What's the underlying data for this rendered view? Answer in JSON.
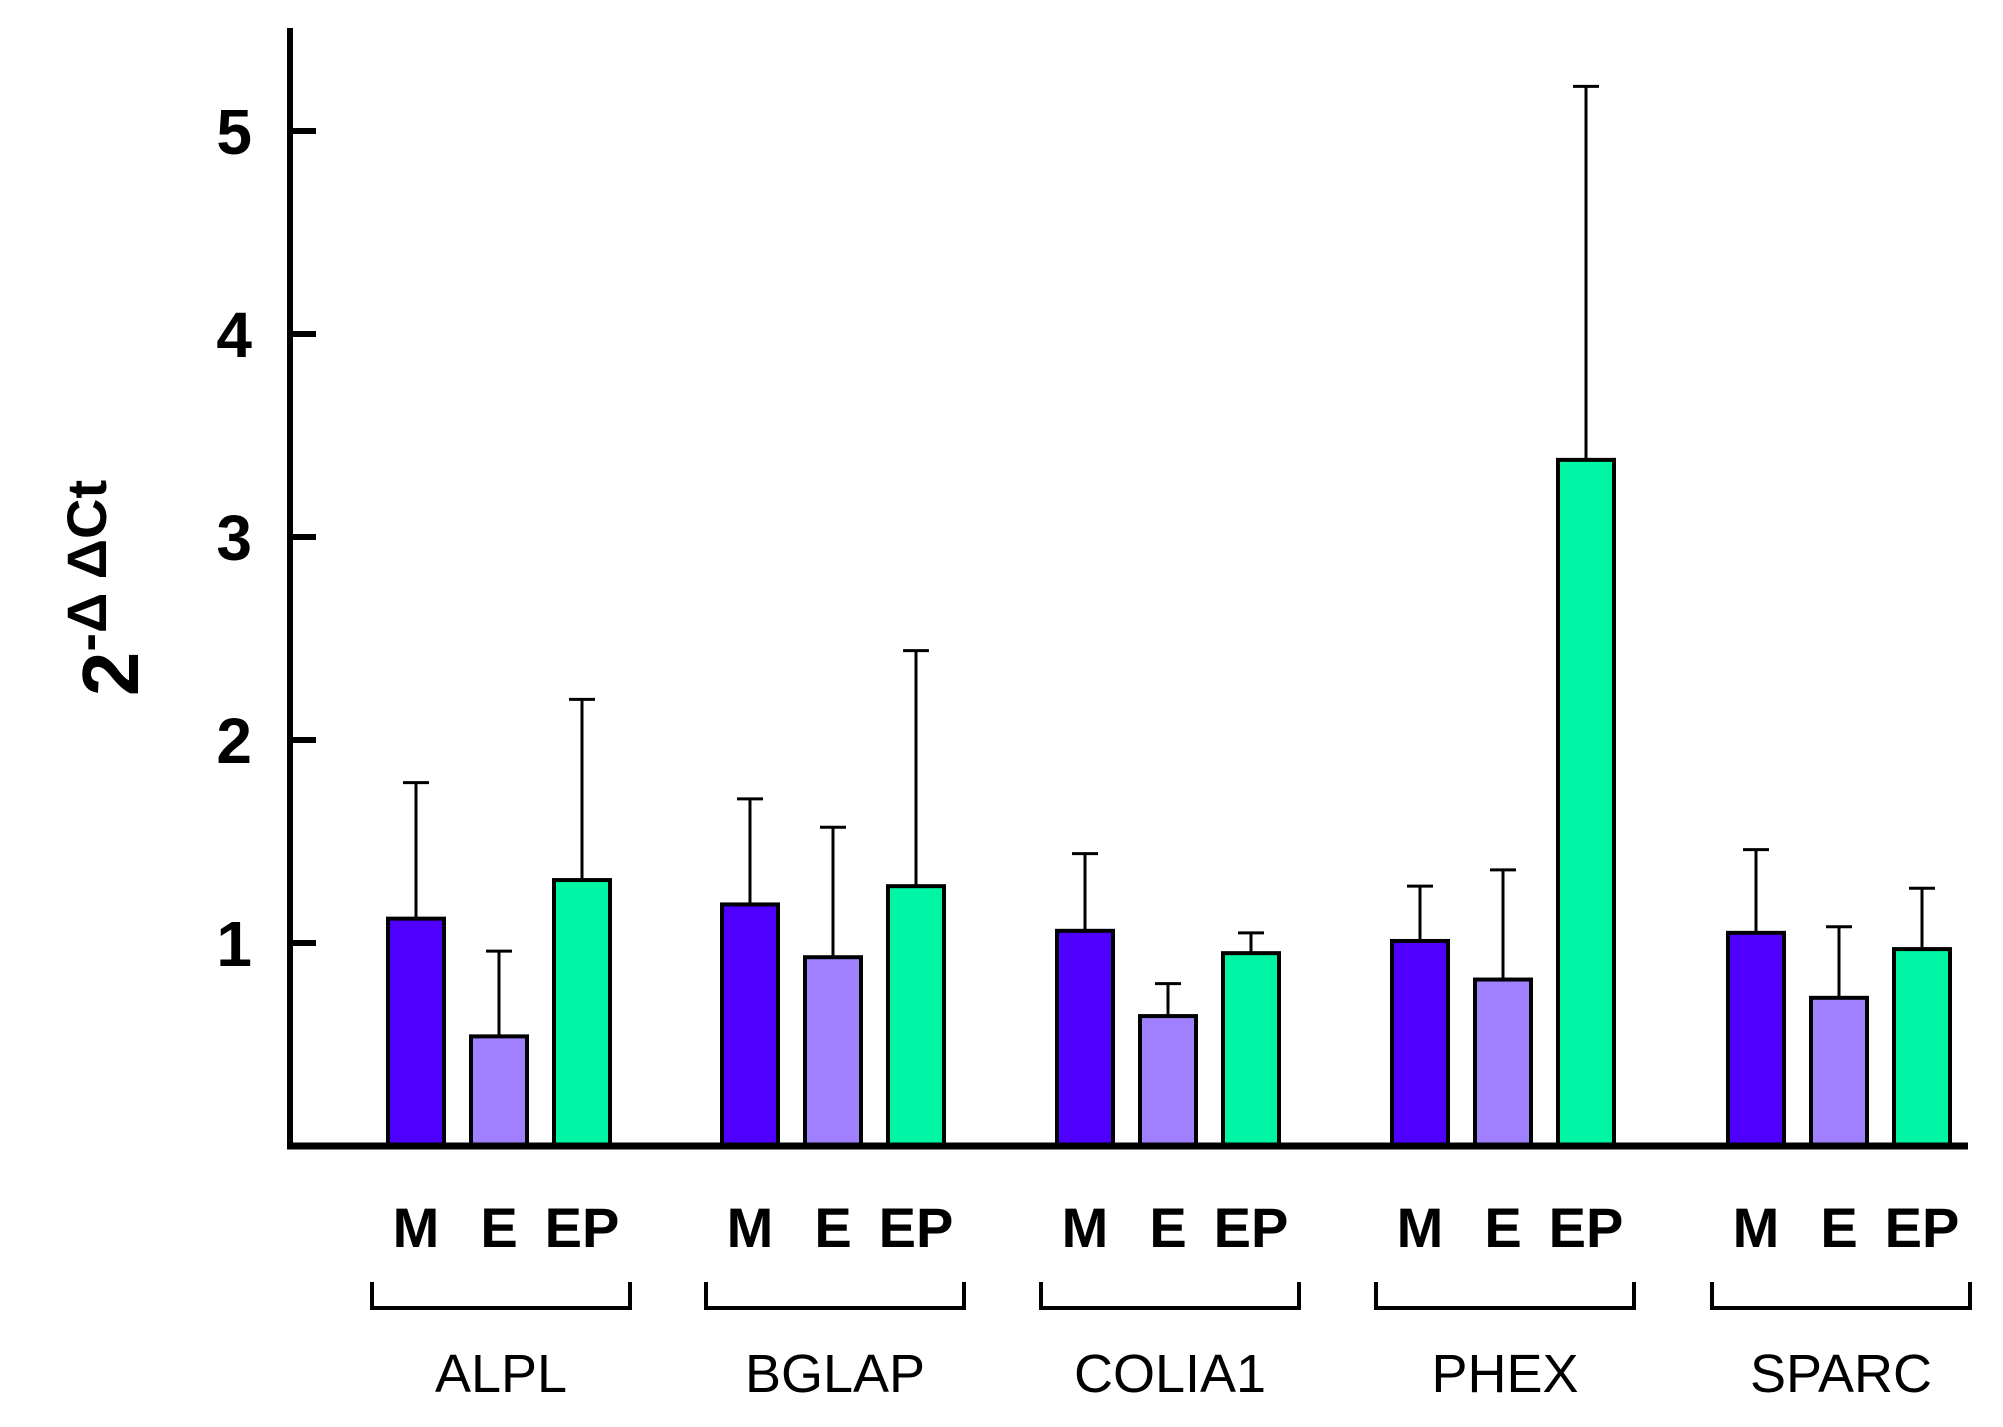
{
  "chart_data": {
    "type": "bar",
    "title": "",
    "xlabel": "",
    "ylabel": "2",
    "ylabel_superscript": "-Δ ΔCt",
    "ylim": [
      0,
      5.5
    ],
    "yticks": [
      "1",
      "2",
      "3",
      "4",
      "5"
    ],
    "categories": [
      "ALPL",
      "BGLAP",
      "COLIA1",
      "PHEX",
      "SPARC"
    ],
    "series": [
      {
        "name": "M",
        "color": "#5000ff",
        "values": [
          1.12,
          1.19,
          1.06,
          1.01,
          1.05
        ],
        "errors": [
          0.67,
          0.52,
          0.38,
          0.27,
          0.41
        ]
      },
      {
        "name": "E",
        "color": "#a080ff",
        "values": [
          0.54,
          0.93,
          0.64,
          0.82,
          0.73
        ],
        "errors": [
          0.42,
          0.64,
          0.16,
          0.54,
          0.35
        ]
      },
      {
        "name": "EP",
        "color": "#00f5a5",
        "values": [
          1.31,
          1.28,
          0.95,
          3.38,
          0.97
        ],
        "errors": [
          0.89,
          1.16,
          0.1,
          1.84,
          0.3
        ]
      }
    ],
    "legend": "none",
    "grid": false
  }
}
